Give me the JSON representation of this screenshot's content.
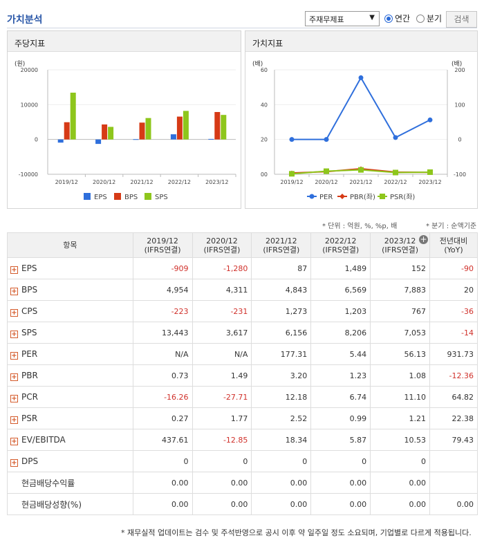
{
  "header": {
    "title": "가치분석",
    "select_value": "주재무제표",
    "radio_annual": "연간",
    "radio_quarter": "분기",
    "search_button": "검색"
  },
  "left_panel": {
    "title": "주당지표"
  },
  "right_panel": {
    "title": "가치지표"
  },
  "notes": {
    "unit": "* 단위 : 억원, %, %p, 배",
    "quarter": "* 분기 : 순액기준",
    "footer": "* 재무실적 업데이트는 검수 및 주석반영으로 공시 이후 약 일주일 정도 소요되며, 기업별로 다르게 적용됩니다."
  },
  "chart_data": [
    {
      "type": "bar",
      "title": "주당지표",
      "ylabel": "(원)",
      "ylim": [
        -10000,
        20000
      ],
      "yticks": [
        "20000",
        "10000",
        "0",
        "-10000"
      ],
      "categories": [
        "2019/12",
        "2020/12",
        "2021/12",
        "2022/12",
        "2023/12"
      ],
      "legend_position": "bottom",
      "series": [
        {
          "name": "EPS",
          "color": "#2f6fdc",
          "values": [
            -909,
            -1280,
            87,
            1489,
            152
          ]
        },
        {
          "name": "BPS",
          "color": "#d63a16",
          "values": [
            4954,
            4311,
            4843,
            6569,
            7883
          ]
        },
        {
          "name": "SPS",
          "color": "#8ec61c",
          "values": [
            13443,
            3617,
            6156,
            8206,
            7053
          ]
        }
      ]
    },
    {
      "type": "line",
      "title": "가치지표",
      "ylabel_left": "(배)",
      "ylabel_right": "(배)",
      "ylim_left": [
        0,
        60
      ],
      "ylim_right": [
        -100,
        200
      ],
      "yticks_left": [
        "60",
        "40",
        "20",
        "00"
      ],
      "yticks_right": [
        "200",
        "100",
        "0",
        "-100"
      ],
      "categories": [
        "2019/12",
        "2020/12",
        "2021/12",
        "2022/12",
        "2023/12"
      ],
      "legend_position": "bottom",
      "series": [
        {
          "name": "PER",
          "color": "#2f6fdc",
          "axis": "right",
          "marker": "circle",
          "values": [
            null,
            null,
            177.31,
            5.44,
            56.13
          ]
        },
        {
          "name": "PBR(좌)",
          "color": "#d63a16",
          "axis": "left",
          "marker": "diamond",
          "values": [
            0.73,
            1.49,
            3.2,
            1.23,
            1.08
          ]
        },
        {
          "name": "PSR(좌)",
          "color": "#8ec61c",
          "axis": "left",
          "marker": "square",
          "values": [
            0.27,
            1.77,
            2.52,
            0.99,
            1.21
          ]
        }
      ]
    }
  ],
  "table": {
    "header_item": "항목",
    "columns": [
      {
        "year": "2019/12",
        "basis": "(IFRS연결)"
      },
      {
        "year": "2020/12",
        "basis": "(IFRS연결)"
      },
      {
        "year": "2021/12",
        "basis": "(IFRS연결)"
      },
      {
        "year": "2022/12",
        "basis": "(IFRS연결)"
      },
      {
        "year": "2023/12",
        "basis": "(IFRS연결)"
      }
    ],
    "yoy_label": "전년대비",
    "yoy_sub": "(YoY)",
    "rows": [
      {
        "label": "EPS",
        "expand": true,
        "values": [
          "-909",
          "-1,280",
          "87",
          "1,489",
          "152"
        ],
        "yoy": "-90"
      },
      {
        "label": "BPS",
        "expand": true,
        "values": [
          "4,954",
          "4,311",
          "4,843",
          "6,569",
          "7,883"
        ],
        "yoy": "20"
      },
      {
        "label": "CPS",
        "expand": true,
        "values": [
          "-223",
          "-231",
          "1,273",
          "1,203",
          "767"
        ],
        "yoy": "-36"
      },
      {
        "label": "SPS",
        "expand": true,
        "values": [
          "13,443",
          "3,617",
          "6,156",
          "8,206",
          "7,053"
        ],
        "yoy": "-14"
      },
      {
        "label": "PER",
        "expand": true,
        "values": [
          "N/A",
          "N/A",
          "177.31",
          "5.44",
          "56.13"
        ],
        "yoy": "931.73"
      },
      {
        "label": "PBR",
        "expand": true,
        "values": [
          "0.73",
          "1.49",
          "3.20",
          "1.23",
          "1.08"
        ],
        "yoy": "-12.36"
      },
      {
        "label": "PCR",
        "expand": true,
        "values": [
          "-16.26",
          "-27.71",
          "12.18",
          "6.74",
          "11.10"
        ],
        "yoy": "64.82"
      },
      {
        "label": "PSR",
        "expand": true,
        "values": [
          "0.27",
          "1.77",
          "2.52",
          "0.99",
          "1.21"
        ],
        "yoy": "22.38"
      },
      {
        "label": "EV/EBITDA",
        "expand": true,
        "values": [
          "437.61",
          "-12.85",
          "18.34",
          "5.87",
          "10.53"
        ],
        "yoy": "79.43"
      },
      {
        "label": "DPS",
        "expand": true,
        "values": [
          "0",
          "0",
          "0",
          "0",
          "0"
        ],
        "yoy": ""
      },
      {
        "label": "현금배당수익률",
        "expand": false,
        "values": [
          "0.00",
          "0.00",
          "0.00",
          "0.00",
          "0.00"
        ],
        "yoy": ""
      },
      {
        "label": "현금배당성향(%)",
        "expand": false,
        "values": [
          "0.00",
          "0.00",
          "0.00",
          "0.00",
          "0.00"
        ],
        "yoy": "0.00"
      }
    ]
  }
}
